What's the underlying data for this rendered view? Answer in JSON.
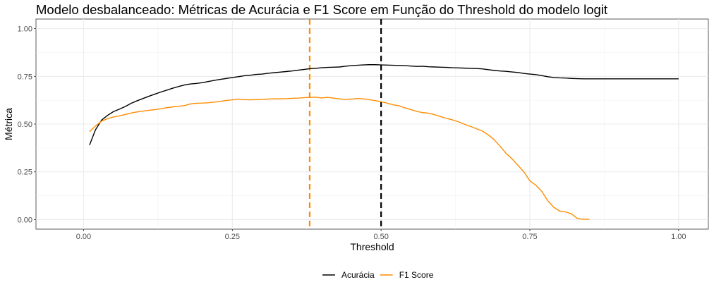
{
  "chart_data": {
    "type": "line",
    "title": "Modelo desbalanceado: Métricas de Acurácia e F1 Score em Função do Threshold do modelo logit",
    "xlabel": "Threshold",
    "ylabel": "Métrica",
    "xlim": [
      -0.08,
      1.05
    ],
    "ylim": [
      -0.05,
      1.05
    ],
    "x_ticks": [
      "0.00",
      "0.25",
      "0.50",
      "0.75",
      "1.00"
    ],
    "y_ticks": [
      "0.00",
      "0.25",
      "0.50",
      "0.75",
      "1.00"
    ],
    "grid": true,
    "legend_position": "bottom",
    "series": [
      {
        "name": "Acurácia",
        "color": "#000000",
        "points": [
          [
            0.01,
            0.39
          ],
          [
            0.02,
            0.47
          ],
          [
            0.03,
            0.52
          ],
          [
            0.04,
            0.545
          ],
          [
            0.05,
            0.565
          ],
          [
            0.06,
            0.578
          ],
          [
            0.07,
            0.592
          ],
          [
            0.08,
            0.609
          ],
          [
            0.09,
            0.622
          ],
          [
            0.1,
            0.634
          ],
          [
            0.11,
            0.646
          ],
          [
            0.12,
            0.657
          ],
          [
            0.13,
            0.668
          ],
          [
            0.14,
            0.678
          ],
          [
            0.15,
            0.688
          ],
          [
            0.16,
            0.697
          ],
          [
            0.17,
            0.705
          ],
          [
            0.18,
            0.71
          ],
          [
            0.19,
            0.713
          ],
          [
            0.2,
            0.717
          ],
          [
            0.21,
            0.723
          ],
          [
            0.22,
            0.729
          ],
          [
            0.23,
            0.734
          ],
          [
            0.24,
            0.739
          ],
          [
            0.25,
            0.744
          ],
          [
            0.26,
            0.748
          ],
          [
            0.27,
            0.753
          ],
          [
            0.28,
            0.756
          ],
          [
            0.29,
            0.76
          ],
          [
            0.3,
            0.762
          ],
          [
            0.31,
            0.766
          ],
          [
            0.32,
            0.769
          ],
          [
            0.33,
            0.772
          ],
          [
            0.34,
            0.775
          ],
          [
            0.35,
            0.778
          ],
          [
            0.36,
            0.782
          ],
          [
            0.37,
            0.786
          ],
          [
            0.38,
            0.79
          ],
          [
            0.39,
            0.792
          ],
          [
            0.4,
            0.795
          ],
          [
            0.41,
            0.797
          ],
          [
            0.42,
            0.798
          ],
          [
            0.43,
            0.799
          ],
          [
            0.44,
            0.803
          ],
          [
            0.45,
            0.806
          ],
          [
            0.46,
            0.808
          ],
          [
            0.47,
            0.81
          ],
          [
            0.48,
            0.811
          ],
          [
            0.49,
            0.811
          ],
          [
            0.5,
            0.81
          ],
          [
            0.51,
            0.809
          ],
          [
            0.52,
            0.808
          ],
          [
            0.53,
            0.807
          ],
          [
            0.54,
            0.806
          ],
          [
            0.55,
            0.804
          ],
          [
            0.56,
            0.802
          ],
          [
            0.57,
            0.803
          ],
          [
            0.58,
            0.8
          ],
          [
            0.59,
            0.799
          ],
          [
            0.6,
            0.798
          ],
          [
            0.61,
            0.797
          ],
          [
            0.62,
            0.795
          ],
          [
            0.63,
            0.794
          ],
          [
            0.64,
            0.793
          ],
          [
            0.65,
            0.792
          ],
          [
            0.66,
            0.791
          ],
          [
            0.67,
            0.789
          ],
          [
            0.68,
            0.785
          ],
          [
            0.69,
            0.781
          ],
          [
            0.7,
            0.778
          ],
          [
            0.71,
            0.776
          ],
          [
            0.72,
            0.773
          ],
          [
            0.73,
            0.77
          ],
          [
            0.74,
            0.765
          ],
          [
            0.75,
            0.762
          ],
          [
            0.76,
            0.759
          ],
          [
            0.77,
            0.754
          ],
          [
            0.78,
            0.748
          ],
          [
            0.79,
            0.744
          ],
          [
            0.8,
            0.742
          ],
          [
            0.81,
            0.741
          ],
          [
            0.82,
            0.739
          ],
          [
            0.83,
            0.738
          ],
          [
            0.84,
            0.737
          ],
          [
            0.85,
            0.737
          ],
          [
            0.9,
            0.737
          ],
          [
            0.95,
            0.737
          ],
          [
            1.0,
            0.737
          ]
        ]
      },
      {
        "name": "F1 Score",
        "color": "#ff8c00",
        "points": [
          [
            0.01,
            0.46
          ],
          [
            0.02,
            0.49
          ],
          [
            0.03,
            0.515
          ],
          [
            0.04,
            0.528
          ],
          [
            0.05,
            0.537
          ],
          [
            0.06,
            0.543
          ],
          [
            0.07,
            0.55
          ],
          [
            0.08,
            0.558
          ],
          [
            0.09,
            0.564
          ],
          [
            0.1,
            0.568
          ],
          [
            0.11,
            0.572
          ],
          [
            0.12,
            0.576
          ],
          [
            0.13,
            0.58
          ],
          [
            0.14,
            0.586
          ],
          [
            0.15,
            0.59
          ],
          [
            0.16,
            0.593
          ],
          [
            0.17,
            0.597
          ],
          [
            0.18,
            0.606
          ],
          [
            0.19,
            0.609
          ],
          [
            0.2,
            0.61
          ],
          [
            0.21,
            0.612
          ],
          [
            0.22,
            0.615
          ],
          [
            0.23,
            0.619
          ],
          [
            0.24,
            0.624
          ],
          [
            0.25,
            0.627
          ],
          [
            0.26,
            0.631
          ],
          [
            0.27,
            0.628
          ],
          [
            0.28,
            0.627
          ],
          [
            0.29,
            0.628
          ],
          [
            0.3,
            0.629
          ],
          [
            0.31,
            0.631
          ],
          [
            0.32,
            0.632
          ],
          [
            0.33,
            0.632
          ],
          [
            0.34,
            0.633
          ],
          [
            0.35,
            0.635
          ],
          [
            0.36,
            0.636
          ],
          [
            0.37,
            0.638
          ],
          [
            0.38,
            0.64
          ],
          [
            0.39,
            0.641
          ],
          [
            0.4,
            0.637
          ],
          [
            0.41,
            0.64
          ],
          [
            0.42,
            0.636
          ],
          [
            0.43,
            0.632
          ],
          [
            0.44,
            0.629
          ],
          [
            0.45,
            0.631
          ],
          [
            0.46,
            0.634
          ],
          [
            0.47,
            0.632
          ],
          [
            0.48,
            0.628
          ],
          [
            0.49,
            0.623
          ],
          [
            0.5,
            0.617
          ],
          [
            0.51,
            0.61
          ],
          [
            0.52,
            0.601
          ],
          [
            0.53,
            0.596
          ],
          [
            0.54,
            0.585
          ],
          [
            0.55,
            0.576
          ],
          [
            0.56,
            0.566
          ],
          [
            0.57,
            0.56
          ],
          [
            0.58,
            0.557
          ],
          [
            0.59,
            0.549
          ],
          [
            0.6,
            0.539
          ],
          [
            0.61,
            0.53
          ],
          [
            0.62,
            0.522
          ],
          [
            0.63,
            0.512
          ],
          [
            0.64,
            0.499
          ],
          [
            0.65,
            0.488
          ],
          [
            0.66,
            0.476
          ],
          [
            0.67,
            0.464
          ],
          [
            0.68,
            0.444
          ],
          [
            0.69,
            0.418
          ],
          [
            0.7,
            0.384
          ],
          [
            0.71,
            0.347
          ],
          [
            0.72,
            0.318
          ],
          [
            0.73,
            0.284
          ],
          [
            0.74,
            0.25
          ],
          [
            0.75,
            0.203
          ],
          [
            0.76,
            0.18
          ],
          [
            0.77,
            0.148
          ],
          [
            0.78,
            0.099
          ],
          [
            0.79,
            0.065
          ],
          [
            0.8,
            0.045
          ],
          [
            0.81,
            0.04
          ],
          [
            0.82,
            0.03
          ],
          [
            0.83,
            0.005
          ],
          [
            0.84,
            0.002
          ],
          [
            0.85,
            0.002
          ]
        ]
      }
    ],
    "reference_lines": [
      {
        "x": 0.38,
        "color": "#ff8c00",
        "style": "dashed"
      },
      {
        "x": 0.5,
        "color": "#000000",
        "style": "dashed"
      }
    ]
  }
}
